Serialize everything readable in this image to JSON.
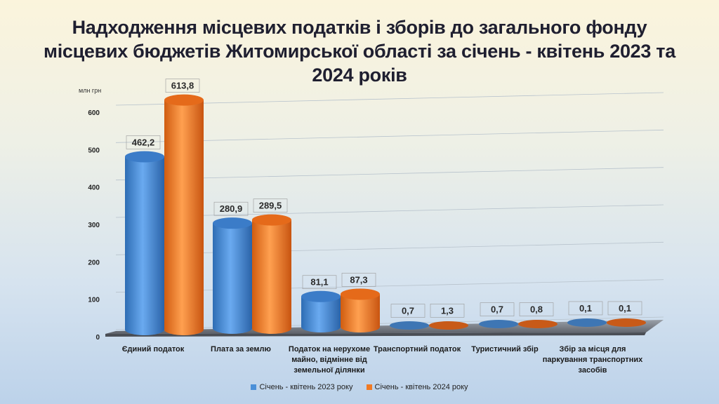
{
  "title": "Надходження місцевих податків і зборів до загального фонду місцевих бюджетів Житомирської області за січень - квітень 2023 та 2024 років",
  "colors": {
    "series1": "#4a8fd8",
    "series2": "#f07a24"
  },
  "chart_data": {
    "type": "bar",
    "title": "Надходження місцевих податків і зборів до загального фонду місцевих бюджетів Житомирської області за січень - квітень 2023 та 2024 років",
    "ylabel": "млн грн",
    "ylim": [
      0,
      650
    ],
    "yticks": [
      "0",
      "100",
      "200",
      "300",
      "400",
      "500",
      "600"
    ],
    "categories": [
      "Єдиний  податок",
      "Плата  за  землю",
      "Податок  на  нерухоме майно,  відмінне  від земельної  ділянки",
      "Транспортний податок",
      "Туристичний  збір",
      "Збір  за  місця  для паркування транспортних  засобів"
    ],
    "series": [
      {
        "name": "Січень - квітень 2023  року",
        "values": [
          462.2,
          280.9,
          81.1,
          0.7,
          0.7,
          0.1
        ],
        "labels": [
          "462,2",
          "280,9",
          "81,1",
          "0,7",
          "0,7",
          "0,1"
        ]
      },
      {
        "name": "Січень - квітень 2024  року",
        "values": [
          613.8,
          289.5,
          87.3,
          1.3,
          0.8,
          0.1
        ],
        "labels": [
          "613,8",
          "289,5",
          "87,3",
          "1,3",
          "0,8",
          "0,1"
        ]
      }
    ],
    "legend": "bottom",
    "grid": true
  }
}
